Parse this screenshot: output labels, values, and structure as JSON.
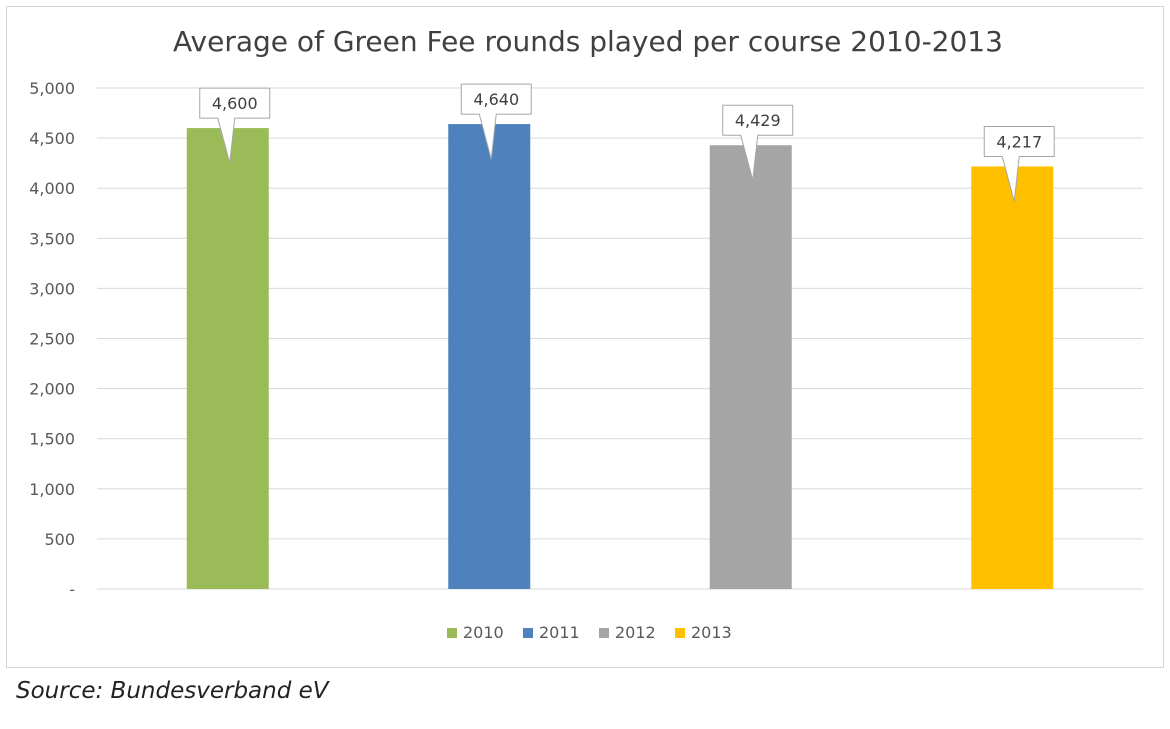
{
  "chart_data": {
    "type": "bar",
    "title": "Average of Green Fee rounds played per course 2010-2013",
    "categories": [
      "2010",
      "2011",
      "2012",
      "2013"
    ],
    "values": [
      4600,
      4640,
      4429,
      4217
    ],
    "data_labels": [
      "4,600",
      "4,640",
      "4,429",
      "4,217"
    ],
    "colors": [
      "#9bbb59",
      "#4f81bd",
      "#a5a5a5",
      "#ffc000"
    ],
    "ylim": [
      0,
      5000
    ],
    "yticks": [
      0,
      500,
      1000,
      1500,
      2000,
      2500,
      3000,
      3500,
      4000,
      4500,
      5000
    ],
    "ytick_labels": [
      "-",
      "500",
      "1,000",
      "1,500",
      "2,000",
      "2,500",
      "3,000",
      "3,500",
      "4,000",
      "4,500",
      "5,000"
    ],
    "xlabel": "",
    "ylabel": "",
    "grid": true,
    "legend": {
      "position": "bottom",
      "entries": [
        "2010",
        "2011",
        "2012",
        "2013"
      ]
    }
  },
  "source": "Source: Bundesverband eV"
}
